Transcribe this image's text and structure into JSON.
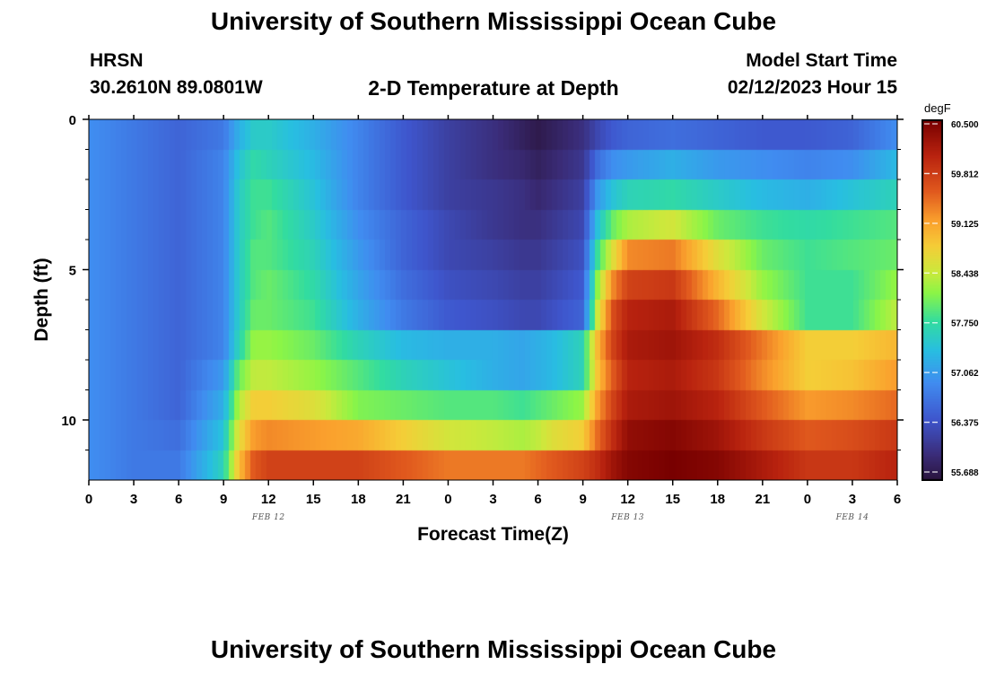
{
  "header": {
    "title": "University of Southern Mississippi Ocean Cube",
    "station": "HRSN",
    "coordinates": "30.2610N  89.0801W",
    "plot_title": "2-D Temperature at Depth",
    "model_label": "Model Start Time",
    "model_time": "02/12/2023 Hour 15"
  },
  "footer": {
    "title": "University of Southern Mississippi Ocean Cube"
  },
  "chart_data": {
    "type": "heatmap",
    "title": "2-D Temperature at Depth",
    "xlabel": "Forecast Time(Z)",
    "ylabel": "Depth (ft)",
    "x_range": [
      0,
      54
    ],
    "y_range": [
      0,
      12
    ],
    "y_inverted": true,
    "x_ticks": [
      {
        "value": 0,
        "label": "0"
      },
      {
        "value": 3,
        "label": "3"
      },
      {
        "value": 6,
        "label": "6"
      },
      {
        "value": 9,
        "label": "9"
      },
      {
        "value": 12,
        "label": "12"
      },
      {
        "value": 15,
        "label": "15"
      },
      {
        "value": 18,
        "label": "18"
      },
      {
        "value": 21,
        "label": "21"
      },
      {
        "value": 24,
        "label": "0"
      },
      {
        "value": 27,
        "label": "3"
      },
      {
        "value": 30,
        "label": "6"
      },
      {
        "value": 33,
        "label": "9"
      },
      {
        "value": 36,
        "label": "12"
      },
      {
        "value": 39,
        "label": "15"
      },
      {
        "value": 42,
        "label": "18"
      },
      {
        "value": 45,
        "label": "21"
      },
      {
        "value": 48,
        "label": "0"
      },
      {
        "value": 51,
        "label": "3"
      },
      {
        "value": 54,
        "label": "6"
      }
    ],
    "date_labels": [
      {
        "value": 12,
        "label": "FEB 12"
      },
      {
        "value": 36,
        "label": "FEB 13"
      },
      {
        "value": 51,
        "label": "FEB 14"
      }
    ],
    "y_ticks": [
      {
        "value": 0,
        "label": "0"
      },
      {
        "value": 5,
        "label": "5"
      },
      {
        "value": 10,
        "label": "10"
      }
    ],
    "y_minor_ticks": [
      1,
      2,
      3,
      4,
      6,
      7,
      8,
      9,
      11
    ],
    "colorbar": {
      "unit": "degF",
      "min": 55.5,
      "max": 60.6,
      "ticks": [
        "60.500",
        "59.812",
        "59.125",
        "58.438",
        "57.750",
        "57.062",
        "56.375",
        "55.688"
      ]
    },
    "depth_levels": [
      0.5,
      1.5,
      2.5,
      3.5,
      4.5,
      5.5,
      6.5,
      7.5,
      8.5,
      9.5,
      10.5,
      11.5
    ],
    "times": [
      0,
      3,
      6,
      9,
      10,
      11,
      12,
      15,
      18,
      21,
      24,
      27,
      29,
      30,
      31,
      33,
      34,
      35,
      36,
      39,
      42,
      45,
      48,
      51,
      54
    ],
    "temperature_degF": [
      [
        56.9,
        56.7,
        56.5,
        56.7,
        57.2,
        57.5,
        57.5,
        57.2,
        56.8,
        56.4,
        56.1,
        55.9,
        55.7,
        55.6,
        55.7,
        55.9,
        56.2,
        56.4,
        56.5,
        56.6,
        56.5,
        56.4,
        56.4,
        56.5,
        56.9
      ],
      [
        56.9,
        56.7,
        56.5,
        56.8,
        57.4,
        57.7,
        57.6,
        57.3,
        56.8,
        56.4,
        56.1,
        55.9,
        55.8,
        55.7,
        55.8,
        56.0,
        56.6,
        56.9,
        57.0,
        57.2,
        57.0,
        56.9,
        56.8,
        56.9,
        57.3
      ],
      [
        56.9,
        56.7,
        56.5,
        56.8,
        57.5,
        57.8,
        57.8,
        57.4,
        56.8,
        56.4,
        56.1,
        56.0,
        55.9,
        55.8,
        55.9,
        56.1,
        57.0,
        57.4,
        57.6,
        57.7,
        57.5,
        57.3,
        57.2,
        57.4,
        57.6
      ],
      [
        56.9,
        56.7,
        56.5,
        56.8,
        57.5,
        57.8,
        57.9,
        57.5,
        56.9,
        56.5,
        56.2,
        56.0,
        55.9,
        55.9,
        56.0,
        56.2,
        57.4,
        58.0,
        58.3,
        58.5,
        58.0,
        57.8,
        57.7,
        57.8,
        57.9
      ],
      [
        56.9,
        56.7,
        56.5,
        56.8,
        57.5,
        57.9,
        57.9,
        57.6,
        57.0,
        56.5,
        56.2,
        56.1,
        56.0,
        56.0,
        56.1,
        56.3,
        57.8,
        58.6,
        59.3,
        59.4,
        58.6,
        58.0,
        57.8,
        57.9,
        58.0
      ],
      [
        56.9,
        56.7,
        56.5,
        56.8,
        57.5,
        57.9,
        58.0,
        57.7,
        57.1,
        56.6,
        56.3,
        56.2,
        56.1,
        56.1,
        56.2,
        56.4,
        58.2,
        59.3,
        59.8,
        59.9,
        59.0,
        58.2,
        57.8,
        57.8,
        58.2
      ],
      [
        56.9,
        56.7,
        56.5,
        56.8,
        57.5,
        58.0,
        58.0,
        57.8,
        57.2,
        56.7,
        56.4,
        56.3,
        56.2,
        56.2,
        56.3,
        56.5,
        58.5,
        59.7,
        60.1,
        60.2,
        59.5,
        58.5,
        57.8,
        57.8,
        58.4
      ],
      [
        56.9,
        56.7,
        56.5,
        56.8,
        57.6,
        58.2,
        58.2,
        58.0,
        57.6,
        57.3,
        57.2,
        57.2,
        57.1,
        57.2,
        57.3,
        57.6,
        59.0,
        59.8,
        60.2,
        60.3,
        60.0,
        59.4,
        58.8,
        58.8,
        59.0
      ],
      [
        56.9,
        56.7,
        56.5,
        57.0,
        58.0,
        58.4,
        58.4,
        58.2,
        57.9,
        57.6,
        57.4,
        57.2,
        57.1,
        57.2,
        57.3,
        57.6,
        58.9,
        59.6,
        60.1,
        60.2,
        59.9,
        59.3,
        58.8,
        58.9,
        59.2
      ],
      [
        56.9,
        56.7,
        56.5,
        57.2,
        58.3,
        58.8,
        58.8,
        58.6,
        58.1,
        58.0,
        57.9,
        57.9,
        57.8,
        57.9,
        58.0,
        58.2,
        59.2,
        59.8,
        60.2,
        60.3,
        60.1,
        59.6,
        59.2,
        59.3,
        59.5
      ],
      [
        56.9,
        56.7,
        56.6,
        57.4,
        58.6,
        59.2,
        59.3,
        59.2,
        59.1,
        58.8,
        58.5,
        58.4,
        58.3,
        58.4,
        58.6,
        58.8,
        59.5,
        60.0,
        60.4,
        60.5,
        60.3,
        59.9,
        59.6,
        59.7,
        59.9
      ],
      [
        56.9,
        56.7,
        56.7,
        57.6,
        58.9,
        59.6,
        59.8,
        59.8,
        59.8,
        59.6,
        59.4,
        59.4,
        59.4,
        59.5,
        59.6,
        59.8,
        60.0,
        60.3,
        60.5,
        60.6,
        60.5,
        60.2,
        59.9,
        59.9,
        60.1
      ]
    ]
  }
}
